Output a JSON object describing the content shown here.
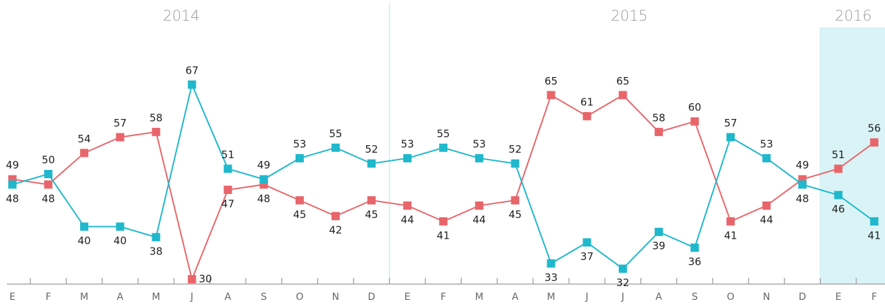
{
  "chart_data": {
    "type": "line",
    "annotations": [
      "2014",
      "2015",
      "2016"
    ],
    "categories": [
      "E",
      "F",
      "M",
      "A",
      "M",
      "J",
      "A",
      "S",
      "O",
      "N",
      "D",
      "E",
      "F",
      "M",
      "A",
      "M",
      "J",
      "J",
      "A",
      "S",
      "O",
      "N",
      "D",
      "E",
      "F"
    ],
    "series": [
      {
        "color": "#e8666b",
        "values": [
          49,
          48,
          54,
          57,
          58,
          30,
          47,
          48,
          45,
          42,
          45,
          44,
          41,
          44,
          45,
          65,
          61,
          65,
          58,
          60,
          41,
          44,
          49,
          51,
          56
        ]
      },
      {
        "color": "#1fb8cc",
        "values": [
          48,
          50,
          40,
          40,
          38,
          67,
          51,
          49,
          53,
          55,
          52,
          53,
          55,
          53,
          52,
          33,
          37,
          32,
          39,
          36,
          57,
          53,
          48,
          46,
          41
        ]
      }
    ]
  }
}
